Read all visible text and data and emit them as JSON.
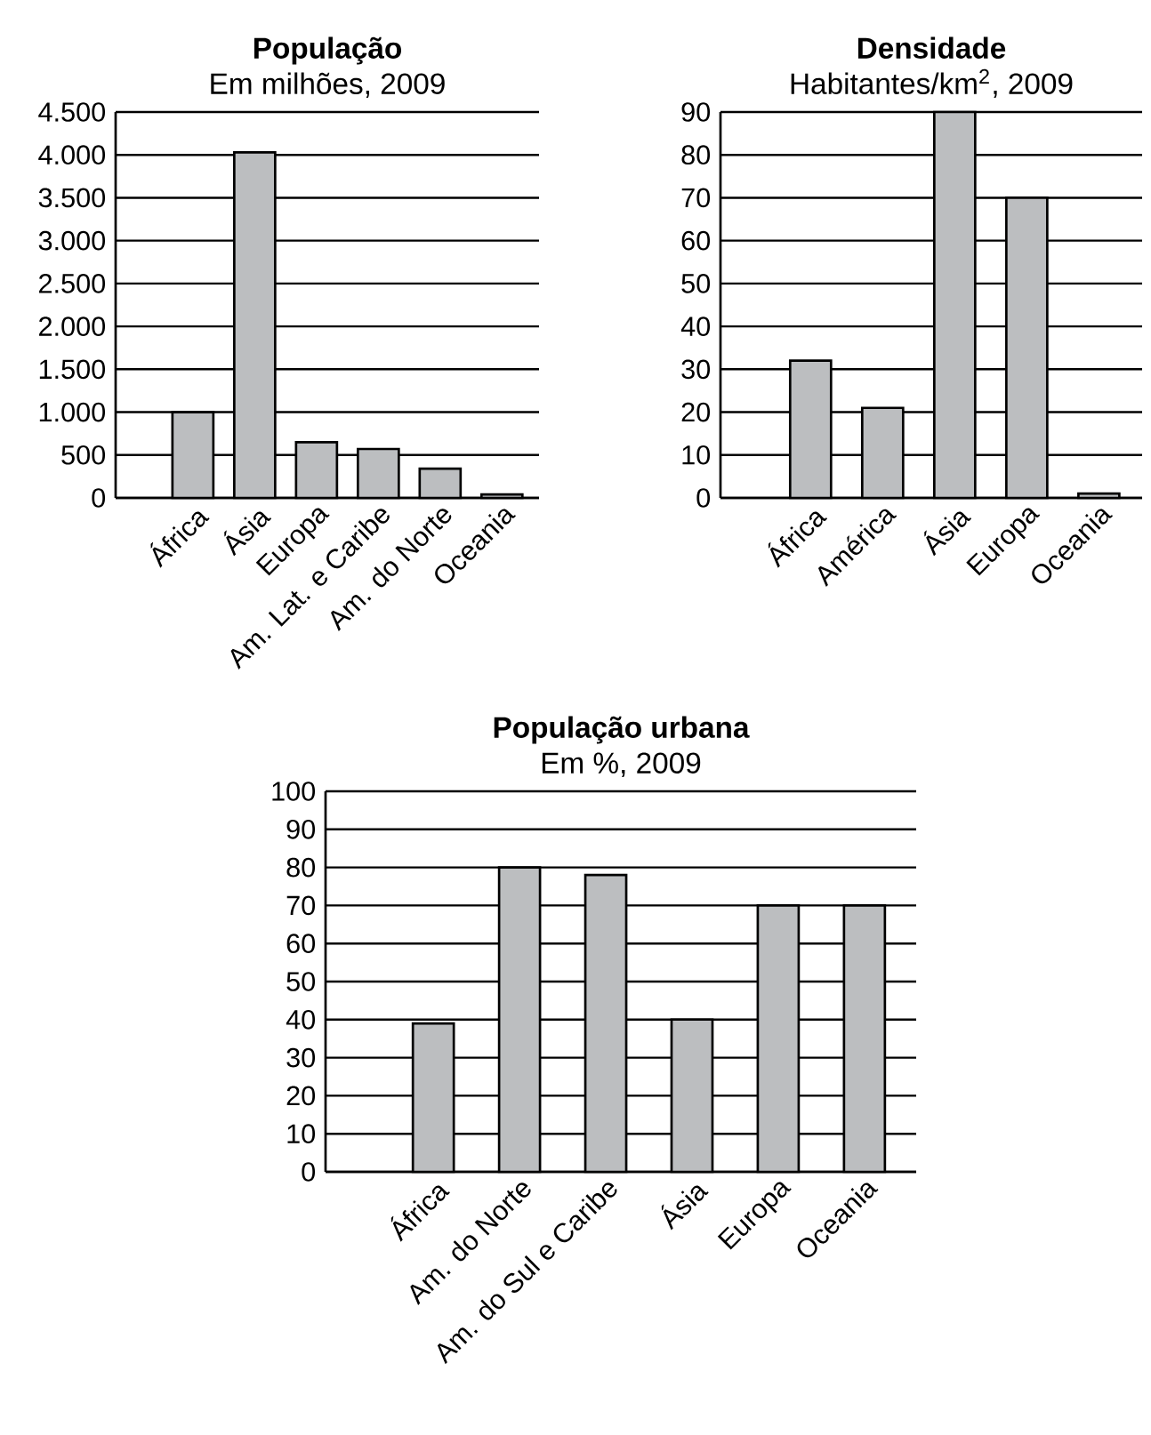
{
  "chart_data": [
    {
      "type": "bar",
      "title": "População",
      "subtitle": "Em milhões, 2009",
      "categories": [
        "África",
        "Ásia",
        "Europa",
        "Am. Lat. e Caribe",
        "Am. do Norte",
        "Oceania"
      ],
      "values": [
        1000,
        4030,
        650,
        570,
        340,
        40
      ],
      "color": "#bcbec0",
      "ylim": [
        0,
        4500
      ],
      "yticks": [
        0,
        500,
        {
          "value": 1000,
          "label": "1.000"
        },
        {
          "value": 1500,
          "label": "1.500"
        },
        {
          "value": 2000,
          "label": "2.000"
        },
        {
          "value": 2500,
          "label": "2.500"
        },
        {
          "value": 3000,
          "label": "3.000"
        },
        {
          "value": 3500,
          "label": "3.500"
        },
        {
          "value": 4000,
          "label": "4.000"
        },
        {
          "value": 4500,
          "label": "4.500"
        }
      ],
      "grid": "y"
    },
    {
      "type": "bar",
      "title": "Densidade",
      "subtitle": "Habitantes/km$^{2}$, 2009",
      "categories": [
        "África",
        "América",
        "Ásia",
        "Europa",
        "Oceania"
      ],
      "values": [
        32,
        21,
        90,
        70,
        1
      ],
      "color": "#bcbec0",
      "ylim": [
        0,
        90
      ],
      "yticks": [
        0,
        10,
        20,
        30,
        40,
        50,
        60,
        70,
        80,
        90
      ],
      "grid": "y"
    },
    {
      "type": "bar",
      "title": "População urbana",
      "subtitle": "Em %, 2009",
      "categories": [
        "África",
        "Am. do Norte",
        "Am. do Sul e Caribe",
        "Ásia",
        "Europa",
        "Oceania"
      ],
      "values": [
        39,
        80,
        78,
        40,
        70,
        70
      ],
      "color": "#bcbec0",
      "ylim": [
        0,
        100
      ],
      "yticks": [
        0,
        10,
        20,
        30,
        40,
        50,
        60,
        70,
        80,
        90,
        100
      ],
      "grid": "y"
    }
  ]
}
